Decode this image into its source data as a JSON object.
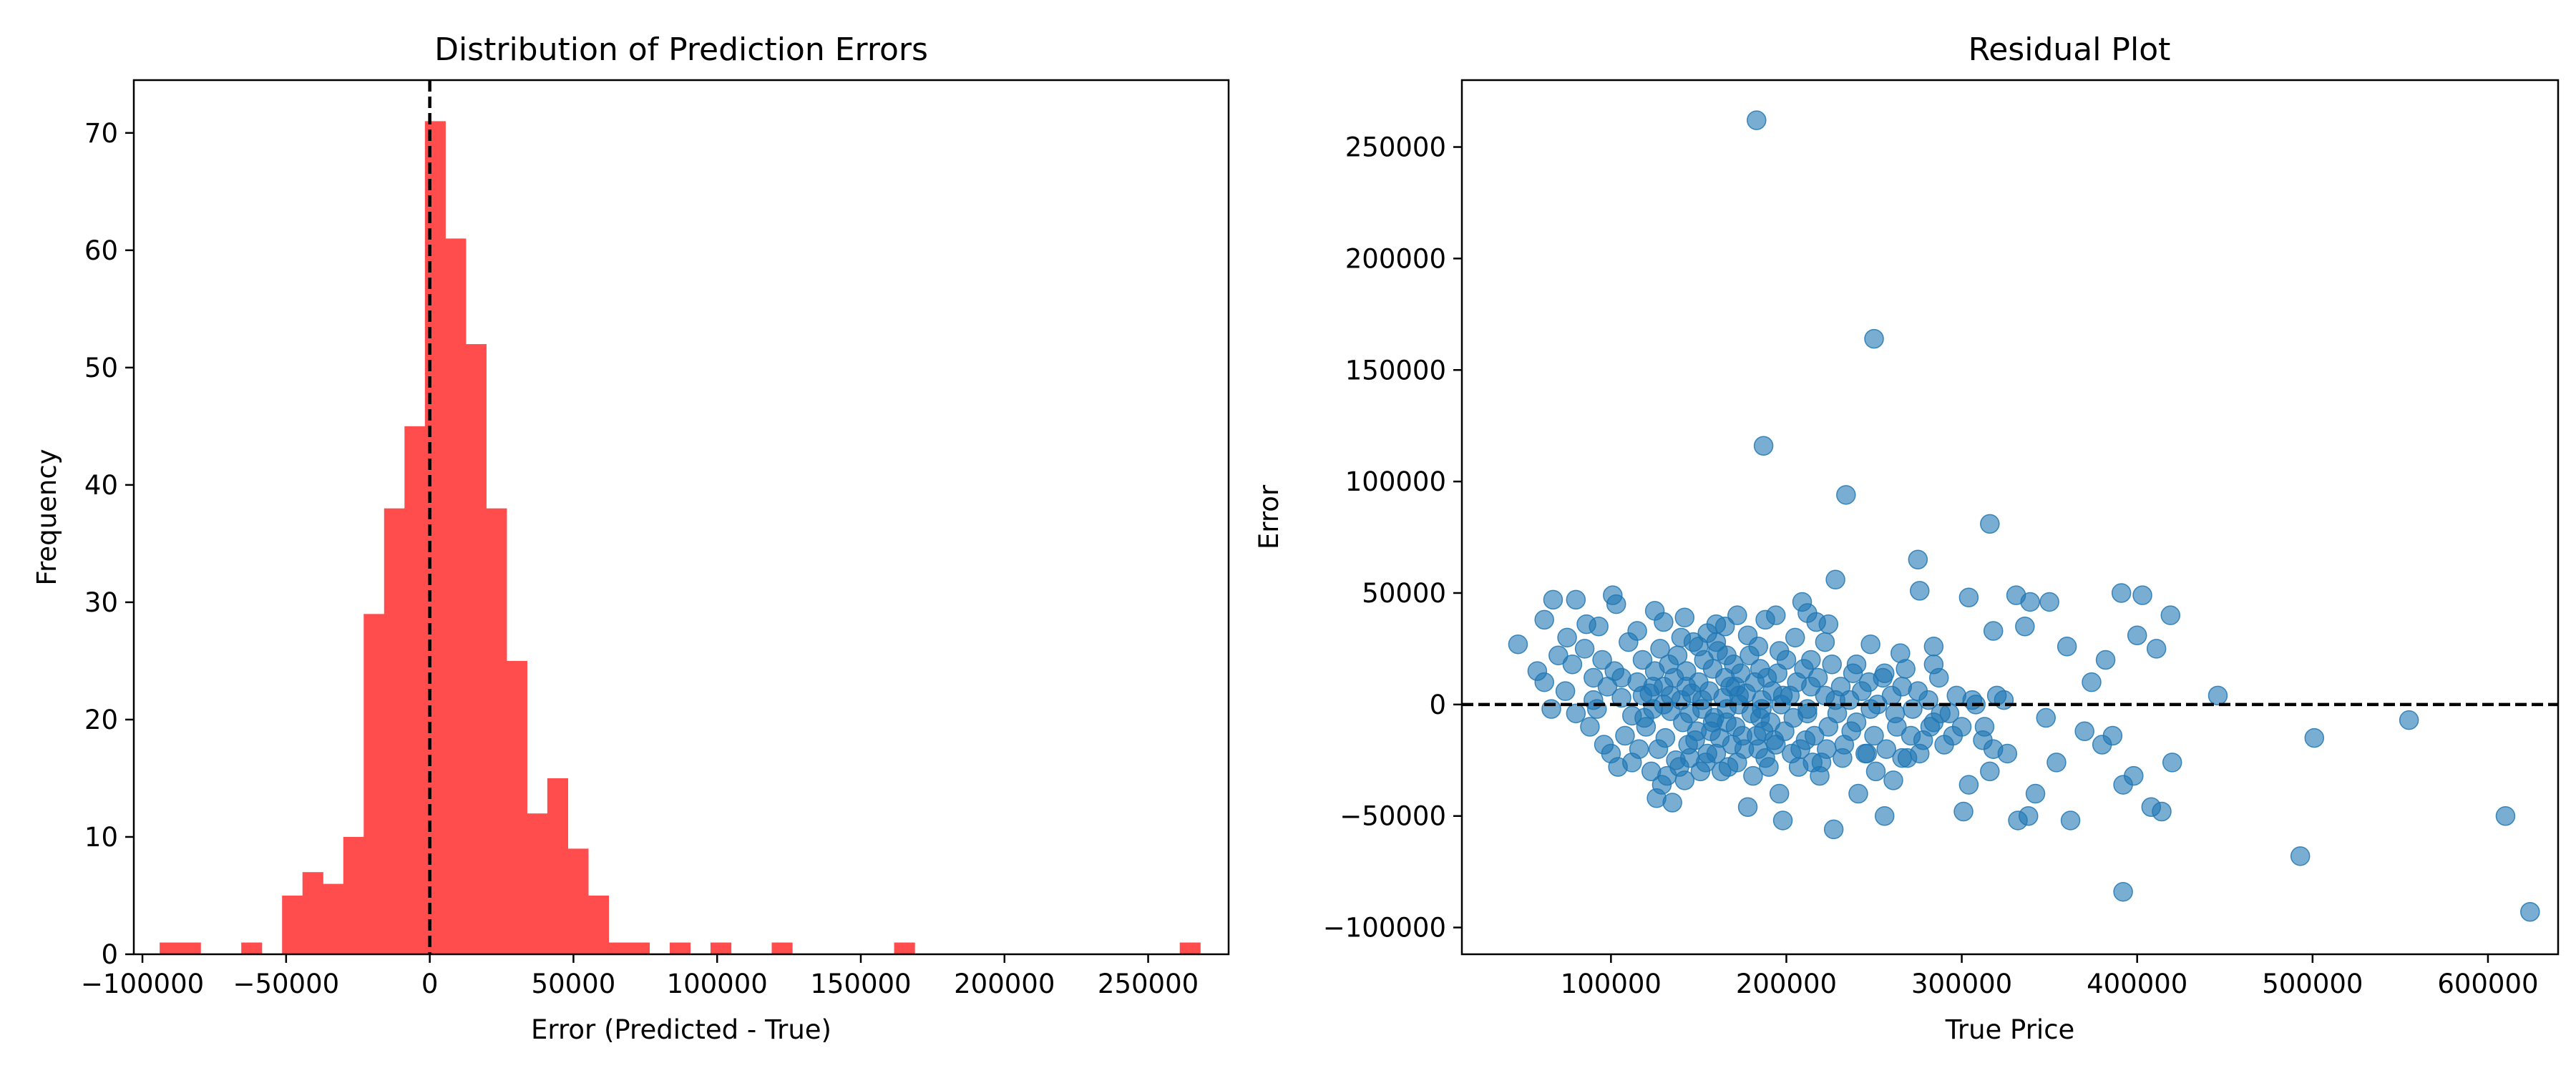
{
  "chart_data": [
    {
      "type": "bar",
      "subtype": "histogram",
      "title": "Distribution of Prediction Errors",
      "xlabel": "Error (Predicted - True)",
      "ylabel": "Frequency",
      "xlim": [
        -103000,
        278000
      ],
      "ylim": [
        0,
        74.5
      ],
      "xticks": [
        -100000,
        -50000,
        0,
        50000,
        100000,
        150000,
        200000,
        250000
      ],
      "xtick_labels": [
        "−100000",
        "−50000",
        "0",
        "50000",
        "100000",
        "150000",
        "200000",
        "250000"
      ],
      "yticks": [
        0,
        10,
        20,
        30,
        40,
        50,
        60,
        70
      ],
      "ytick_labels": [
        "0",
        "10",
        "20",
        "30",
        "40",
        "50",
        "60",
        "70"
      ],
      "bin_start": -94000,
      "bin_width": 7100,
      "counts": [
        1,
        1,
        0,
        0,
        1,
        0,
        5,
        7,
        6,
        10,
        29,
        38,
        45,
        71,
        61,
        52,
        38,
        25,
        12,
        15,
        9,
        5,
        1,
        1,
        0,
        1,
        0,
        1,
        0,
        0,
        1,
        0,
        0,
        0,
        0,
        0,
        1,
        0,
        0,
        0,
        0,
        0,
        0,
        0,
        0,
        0,
        0,
        0,
        0,
        0,
        1
      ],
      "bar_color": "#ff4c4c",
      "reference_line": {
        "x": 0,
        "style": "dashed",
        "color": "#000000"
      }
    },
    {
      "type": "scatter",
      "title": "Residual Plot",
      "xlabel": "True Price",
      "ylabel": "Error",
      "xlim": [
        15000,
        640000
      ],
      "ylim": [
        -112000,
        280000
      ],
      "xticks": [
        100000,
        200000,
        300000,
        400000,
        500000,
        600000
      ],
      "xtick_labels": [
        "100000",
        "200000",
        "300000",
        "400000",
        "500000",
        "600000"
      ],
      "yticks": [
        -100000,
        -50000,
        0,
        50000,
        100000,
        150000,
        200000,
        250000
      ],
      "ytick_labels": [
        "−100000",
        "−50000",
        "0",
        "50000",
        "100000",
        "150000",
        "200000",
        "250000"
      ],
      "point_color": "#1f77b4",
      "point_alpha": 0.6,
      "reference_line": {
        "y": 0,
        "style": "dashed",
        "color": "#000000"
      },
      "points": [
        [
          183000,
          262000
        ],
        [
          250000,
          164000
        ],
        [
          187000,
          116000
        ],
        [
          234000,
          94000
        ],
        [
          316000,
          81000
        ],
        [
          275000,
          65000
        ],
        [
          228000,
          56000
        ],
        [
          276000,
          51000
        ],
        [
          391000,
          50000
        ],
        [
          403000,
          49000
        ],
        [
          331000,
          49000
        ],
        [
          304000,
          48000
        ],
        [
          350000,
          46000
        ],
        [
          339000,
          46000
        ],
        [
          101000,
          49000
        ],
        [
          67000,
          47000
        ],
        [
          80000,
          47000
        ],
        [
          103000,
          45000
        ],
        [
          209000,
          46000
        ],
        [
          419000,
          40000
        ],
        [
          172000,
          40000
        ],
        [
          142000,
          39000
        ],
        [
          212000,
          41000
        ],
        [
          194000,
          40000
        ],
        [
          188000,
          38000
        ],
        [
          224000,
          36000
        ],
        [
          217000,
          37000
        ],
        [
          62000,
          38000
        ],
        [
          93000,
          35000
        ],
        [
          86000,
          36000
        ],
        [
          75000,
          30000
        ],
        [
          115000,
          33000
        ],
        [
          125000,
          42000
        ],
        [
          130000,
          37000
        ],
        [
          160000,
          36000
        ],
        [
          165000,
          35000
        ],
        [
          178000,
          31000
        ],
        [
          336000,
          35000
        ],
        [
          318000,
          33000
        ],
        [
          360000,
          26000
        ],
        [
          400000,
          31000
        ],
        [
          411000,
          25000
        ],
        [
          382000,
          20000
        ],
        [
          284000,
          26000
        ],
        [
          265000,
          23000
        ],
        [
          248000,
          27000
        ],
        [
          205000,
          30000
        ],
        [
          222000,
          28000
        ],
        [
          47000,
          27000
        ],
        [
          58000,
          15000
        ],
        [
          62000,
          10000
        ],
        [
          70000,
          22000
        ],
        [
          78000,
          18000
        ],
        [
          85000,
          25000
        ],
        [
          90000,
          12000
        ],
        [
          95000,
          20000
        ],
        [
          98000,
          8000
        ],
        [
          102000,
          15000
        ],
        [
          106000,
          3000
        ],
        [
          110000,
          28000
        ],
        [
          112000,
          -5000
        ],
        [
          115000,
          10000
        ],
        [
          118000,
          20000
        ],
        [
          120000,
          -10000
        ],
        [
          122000,
          5000
        ],
        [
          125000,
          15000
        ],
        [
          127000,
          -20000
        ],
        [
          128000,
          25000
        ],
        [
          130000,
          8000
        ],
        [
          131000,
          -15000
        ],
        [
          133000,
          18000
        ],
        [
          134000,
          -3000
        ],
        [
          136000,
          12000
        ],
        [
          137000,
          -25000
        ],
        [
          138000,
          22000
        ],
        [
          140000,
          2000
        ],
        [
          141000,
          -8000
        ],
        [
          143000,
          15000
        ],
        [
          144000,
          -18000
        ],
        [
          146000,
          5000
        ],
        [
          147000,
          28000
        ],
        [
          149000,
          -12000
        ],
        [
          150000,
          10000
        ],
        [
          152000,
          -2000
        ],
        [
          153000,
          20000
        ],
        [
          155000,
          -22000
        ],
        [
          156000,
          6000
        ],
        [
          158000,
          16000
        ],
        [
          159000,
          -6000
        ],
        [
          161000,
          24000
        ],
        [
          162000,
          -15000
        ],
        [
          164000,
          3000
        ],
        [
          165000,
          12000
        ],
        [
          167000,
          -28000
        ],
        [
          168000,
          8000
        ],
        [
          170000,
          18000
        ],
        [
          171000,
          -10000
        ],
        [
          173000,
          0
        ],
        [
          174000,
          14000
        ],
        [
          176000,
          -20000
        ],
        [
          177000,
          5000
        ],
        [
          179000,
          22000
        ],
        [
          180000,
          -4000
        ],
        [
          182000,
          10000
        ],
        [
          183000,
          -14000
        ],
        [
          185000,
          16000
        ],
        [
          186000,
          2000
        ],
        [
          188000,
          -24000
        ],
        [
          189000,
          12000
        ],
        [
          191000,
          -8000
        ],
        [
          192000,
          6000
        ],
        [
          194000,
          -18000
        ],
        [
          195000,
          14000
        ],
        [
          197000,
          0
        ],
        [
          199000,
          -12000
        ],
        [
          200000,
          20000
        ],
        [
          202000,
          4000
        ],
        [
          204000,
          -6000
        ],
        [
          206000,
          10000
        ],
        [
          208000,
          -20000
        ],
        [
          210000,
          16000
        ],
        [
          212000,
          -2000
        ],
        [
          214000,
          8000
        ],
        [
          216000,
          -14000
        ],
        [
          218000,
          12000
        ],
        [
          220000,
          -26000
        ],
        [
          222000,
          4000
        ],
        [
          224000,
          -10000
        ],
        [
          226000,
          18000
        ],
        [
          229000,
          -4000
        ],
        [
          231000,
          8000
        ],
        [
          233000,
          -18000
        ],
        [
          236000,
          2000
        ],
        [
          238000,
          14000
        ],
        [
          240000,
          -8000
        ],
        [
          243000,
          6000
        ],
        [
          245000,
          -22000
        ],
        [
          247000,
          10000
        ],
        [
          250000,
          -14000
        ],
        [
          252000,
          0
        ],
        [
          255000,
          12000
        ],
        [
          257000,
          -20000
        ],
        [
          260000,
          4000
        ],
        [
          263000,
          -10000
        ],
        [
          266000,
          8000
        ],
        [
          269000,
          -24000
        ],
        [
          272000,
          -2000
        ],
        [
          275000,
          6000
        ],
        [
          278000,
          -16000
        ],
        [
          281000,
          2000
        ],
        [
          284000,
          -8000
        ],
        [
          287000,
          12000
        ],
        [
          290000,
          -18000
        ],
        [
          293000,
          -4000
        ],
        [
          297000,
          4000
        ],
        [
          300000,
          -10000
        ],
        [
          304000,
          -36000
        ],
        [
          308000,
          0
        ],
        [
          312000,
          -16000
        ],
        [
          316000,
          -30000
        ],
        [
          320000,
          4000
        ],
        [
          326000,
          -22000
        ],
        [
          332000,
          -52000
        ],
        [
          338000,
          -50000
        ],
        [
          342000,
          -40000
        ],
        [
          348000,
          -6000
        ],
        [
          354000,
          -26000
        ],
        [
          362000,
          -52000
        ],
        [
          370000,
          -12000
        ],
        [
          374000,
          10000
        ],
        [
          380000,
          -18000
        ],
        [
          386000,
          -14000
        ],
        [
          392000,
          -36000
        ],
        [
          398000,
          -32000
        ],
        [
          408000,
          -46000
        ],
        [
          414000,
          -48000
        ],
        [
          420000,
          -26000
        ],
        [
          446000,
          4000
        ],
        [
          493000,
          -68000
        ],
        [
          501000,
          -15000
        ],
        [
          555000,
          -7000
        ],
        [
          610000,
          -50000
        ],
        [
          624000,
          -93000
        ],
        [
          392000,
          -84000
        ],
        [
          80000,
          -4000
        ],
        [
          88000,
          -10000
        ],
        [
          92000,
          -2000
        ],
        [
          96000,
          -18000
        ],
        [
          100000,
          -22000
        ],
        [
          104000,
          -28000
        ],
        [
          108000,
          -14000
        ],
        [
          112000,
          -26000
        ],
        [
          116000,
          -20000
        ],
        [
          119000,
          -6000
        ],
        [
          123000,
          -30000
        ],
        [
          126000,
          -42000
        ],
        [
          129000,
          -36000
        ],
        [
          132000,
          -32000
        ],
        [
          135000,
          -44000
        ],
        [
          139000,
          -28000
        ],
        [
          142000,
          -34000
        ],
        [
          145000,
          -24000
        ],
        [
          148000,
          -16000
        ],
        [
          151000,
          -30000
        ],
        [
          154000,
          -26000
        ],
        [
          157000,
          -12000
        ],
        [
          160000,
          -22000
        ],
        [
          163000,
          -30000
        ],
        [
          166000,
          -8000
        ],
        [
          169000,
          -18000
        ],
        [
          172000,
          -26000
        ],
        [
          175000,
          -14000
        ],
        [
          178000,
          -46000
        ],
        [
          181000,
          -32000
        ],
        [
          184000,
          -20000
        ],
        [
          187000,
          -12000
        ],
        [
          190000,
          -28000
        ],
        [
          193000,
          -16000
        ],
        [
          196000,
          -40000
        ],
        [
          198000,
          -52000
        ],
        [
          203000,
          -22000
        ],
        [
          207000,
          -28000
        ],
        [
          211000,
          -16000
        ],
        [
          215000,
          -26000
        ],
        [
          219000,
          -32000
        ],
        [
          223000,
          -20000
        ],
        [
          227000,
          -56000
        ],
        [
          232000,
          -24000
        ],
        [
          237000,
          -12000
        ],
        [
          241000,
          -40000
        ],
        [
          246000,
          -22000
        ],
        [
          251000,
          -30000
        ],
        [
          256000,
          -50000
        ],
        [
          261000,
          -34000
        ],
        [
          266000,
          -24000
        ],
        [
          271000,
          -14000
        ],
        [
          276000,
          -22000
        ],
        [
          282000,
          -10000
        ],
        [
          288000,
          -4000
        ],
        [
          295000,
          -14000
        ],
        [
          301000,
          -48000
        ],
        [
          306000,
          2000
        ],
        [
          313000,
          -10000
        ],
        [
          318000,
          -20000
        ],
        [
          324000,
          2000
        ],
        [
          140000,
          30000
        ],
        [
          150000,
          26000
        ],
        [
          155000,
          32000
        ],
        [
          160000,
          28000
        ],
        [
          166000,
          22000
        ],
        [
          184000,
          26000
        ],
        [
          196000,
          24000
        ],
        [
          214000,
          20000
        ],
        [
          240000,
          18000
        ],
        [
          256000,
          14000
        ],
        [
          268000,
          16000
        ],
        [
          284000,
          18000
        ],
        [
          118000,
          4000
        ],
        [
          124000,
          -2000
        ],
        [
          130000,
          0
        ],
        [
          145000,
          -4000
        ],
        [
          152000,
          2000
        ],
        [
          166000,
          -2000
        ],
        [
          173000,
          4000
        ],
        [
          185000,
          -6000
        ],
        [
          198000,
          4000
        ],
        [
          212000,
          -4000
        ],
        [
          228000,
          2000
        ],
        [
          248000,
          -2000
        ],
        [
          262000,
          -4000
        ],
        [
          74000,
          6000
        ],
        [
          66000,
          -2000
        ],
        [
          90000,
          2000
        ],
        [
          106000,
          12000
        ],
        [
          124000,
          8000
        ],
        [
          134000,
          4000
        ],
        [
          143000,
          8000
        ],
        [
          158000,
          -8000
        ],
        [
          171000,
          8000
        ],
        [
          186000,
          -2000
        ]
      ]
    }
  ]
}
